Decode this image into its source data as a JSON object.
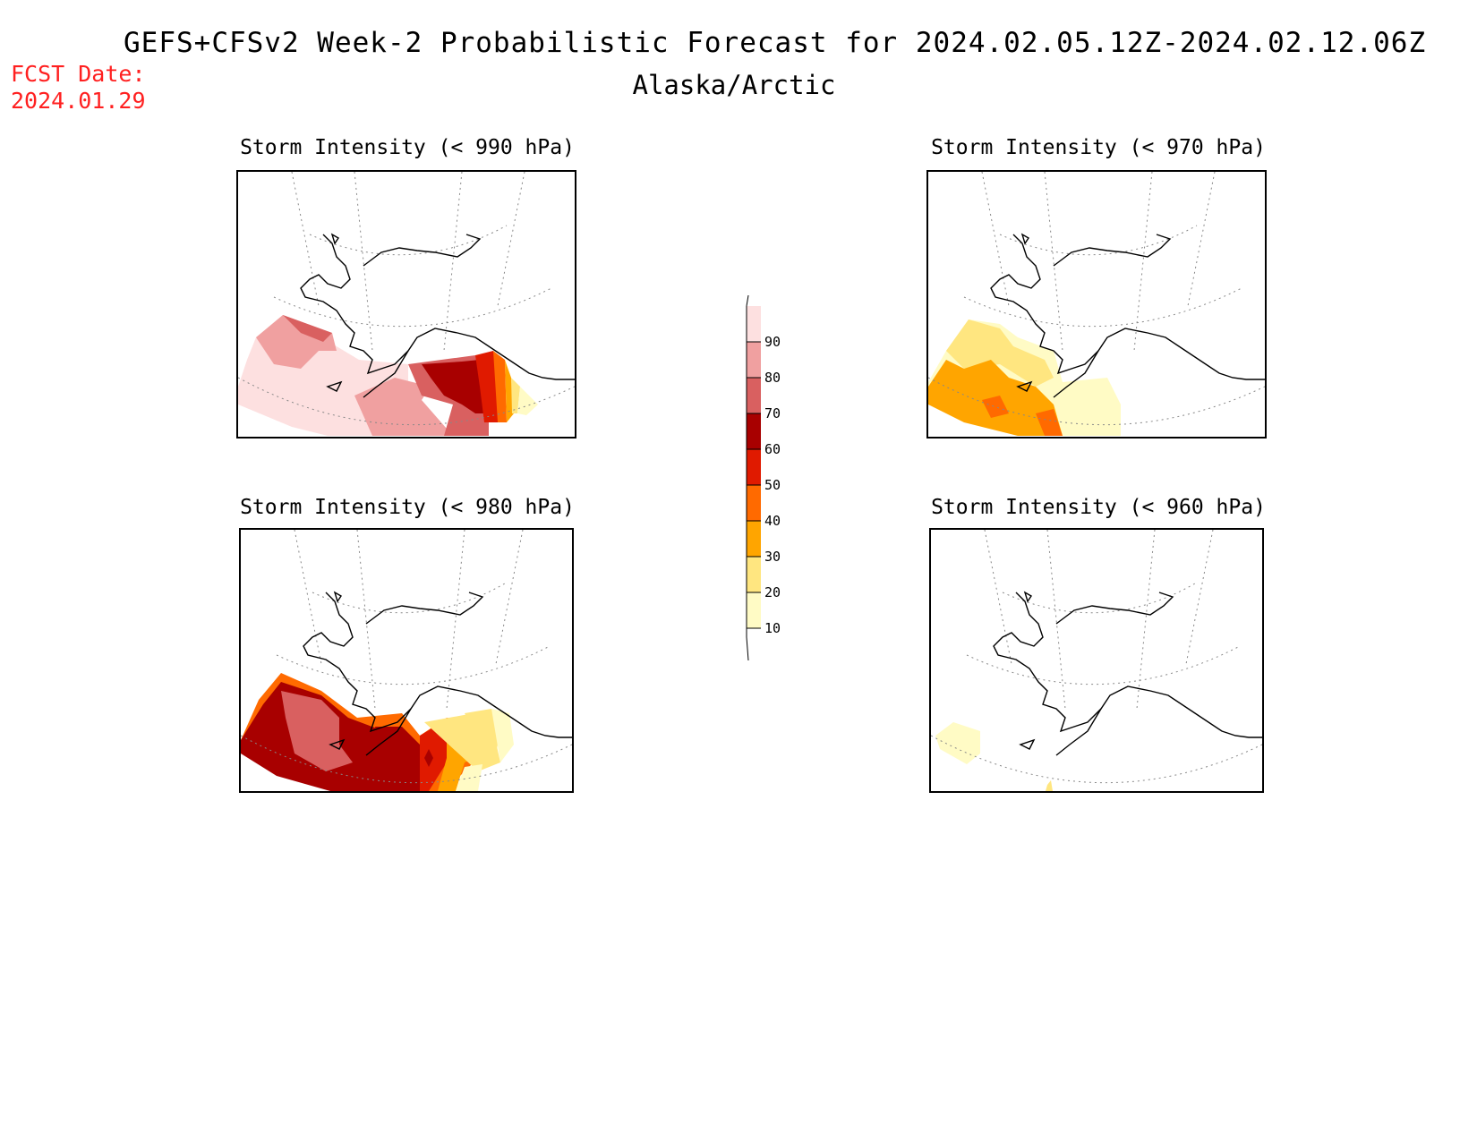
{
  "title": "GEFS+CFSv2 Week-2 Probabilistic Forecast for 2024.02.05.12Z-2024.02.12.06Z",
  "subtitle": "Alaska/Arctic",
  "fcst_date_label": "FCST Date:",
  "fcst_date_value": "2024.01.29",
  "panels": [
    {
      "title": "Storm Intensity (< 990 hPa)"
    },
    {
      "title": "Storm Intensity (< 970 hPa)"
    },
    {
      "title": "Storm Intensity (< 980 hPa)"
    },
    {
      "title": "Storm Intensity (< 960 hPa)"
    }
  ],
  "colorbar": {
    "levels": [
      "10",
      "20",
      "30",
      "40",
      "50",
      "60",
      "70",
      "80",
      "90"
    ],
    "colors": [
      "#fffbc5",
      "#ffe680",
      "#ffa500",
      "#ff6a00",
      "#e01a00",
      "#a80000",
      "#d96060",
      "#f0a0a0",
      "#fde0e0"
    ]
  }
}
